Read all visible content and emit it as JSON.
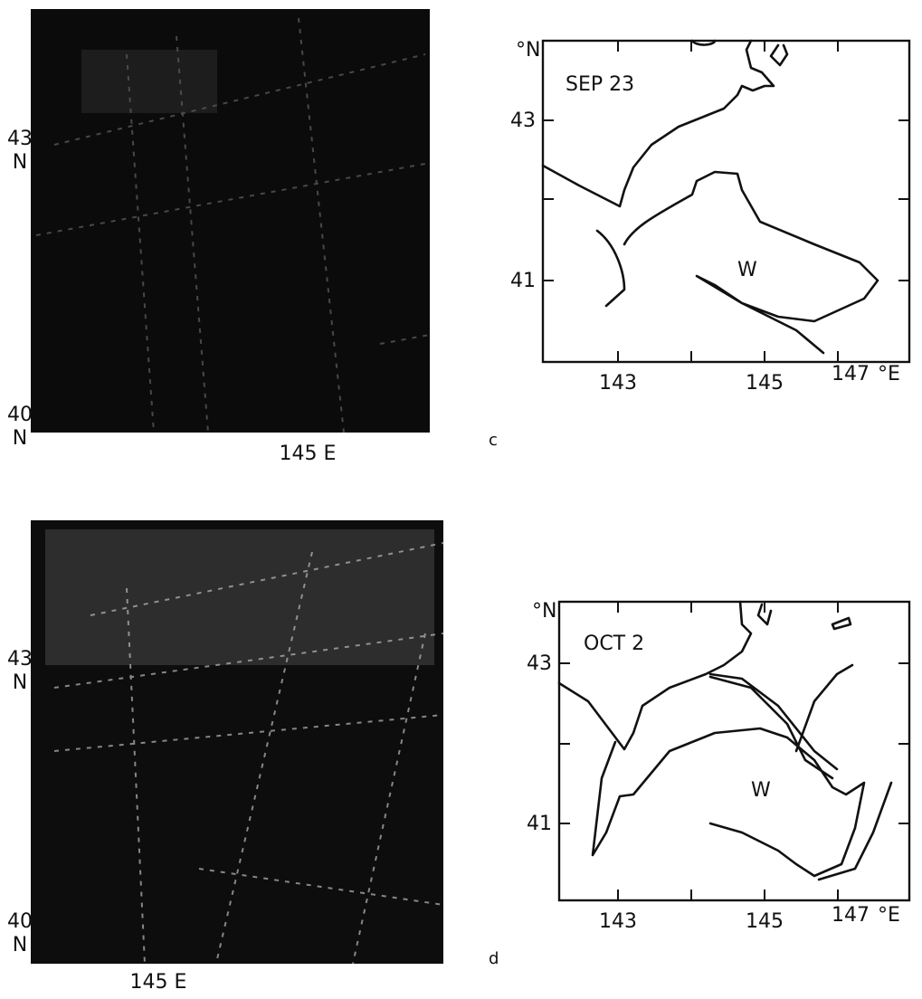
{
  "panels": [
    {
      "letter": "c",
      "image": {
        "lat_labels": [
          {
            "deg": "43",
            "hemi": "N"
          },
          {
            "deg": "40",
            "hemi": "N"
          }
        ],
        "lon_label": "145 E"
      },
      "map": {
        "date": "SEP 23",
        "lat_unit": "°N",
        "lon_unit": "°E",
        "lat_ticks": [
          "43",
          "41"
        ],
        "lon_ticks": [
          "143",
          "145",
          "147"
        ],
        "feature": "W"
      }
    },
    {
      "letter": "d",
      "image": {
        "lat_labels": [
          {
            "deg": "43",
            "hemi": "N"
          },
          {
            "deg": "40",
            "hemi": "N"
          }
        ],
        "lon_label": "145 E"
      },
      "map": {
        "date": "OCT 2",
        "lat_unit": "°N",
        "lon_unit": "°E",
        "lat_ticks": [
          "43",
          "41"
        ],
        "lon_ticks": [
          "143",
          "145",
          "147"
        ],
        "feature": "W"
      }
    }
  ]
}
